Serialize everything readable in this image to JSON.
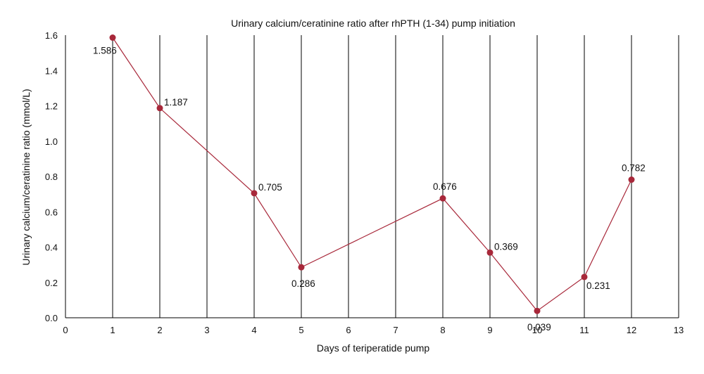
{
  "chart_data": {
    "type": "line",
    "title": "Urinary calcium/ceratinine ratio after rhPTH (1-34) pump initiation",
    "xlabel": "Days of teriperatide pump",
    "ylabel": "Urinary calcium/ceratinine ratio (mmol/L)",
    "xlim": [
      0,
      13
    ],
    "ylim": [
      0,
      1.6
    ],
    "x_ticks": [
      0,
      1,
      2,
      3,
      4,
      5,
      6,
      7,
      8,
      9,
      10,
      11,
      12,
      13
    ],
    "y_ticks": [
      "0.0",
      "0.2",
      "0.4",
      "0.6",
      "0.8",
      "1.0",
      "1.2",
      "1.4",
      "1.6"
    ],
    "vertical_grid": true,
    "horizontal_grid": false,
    "series": [
      {
        "color": "#a8283a",
        "x": [
          1,
          2,
          4,
          5,
          8,
          9,
          10,
          11,
          12
        ],
        "values": [
          1.586,
          1.187,
          0.705,
          0.286,
          0.676,
          0.369,
          0.039,
          0.231,
          0.782
        ],
        "labels": [
          "1.586",
          "1.187",
          "0.705",
          "0.286",
          "0.676",
          "0.369",
          "0.039",
          "0.231",
          "0.782"
        ]
      }
    ]
  }
}
